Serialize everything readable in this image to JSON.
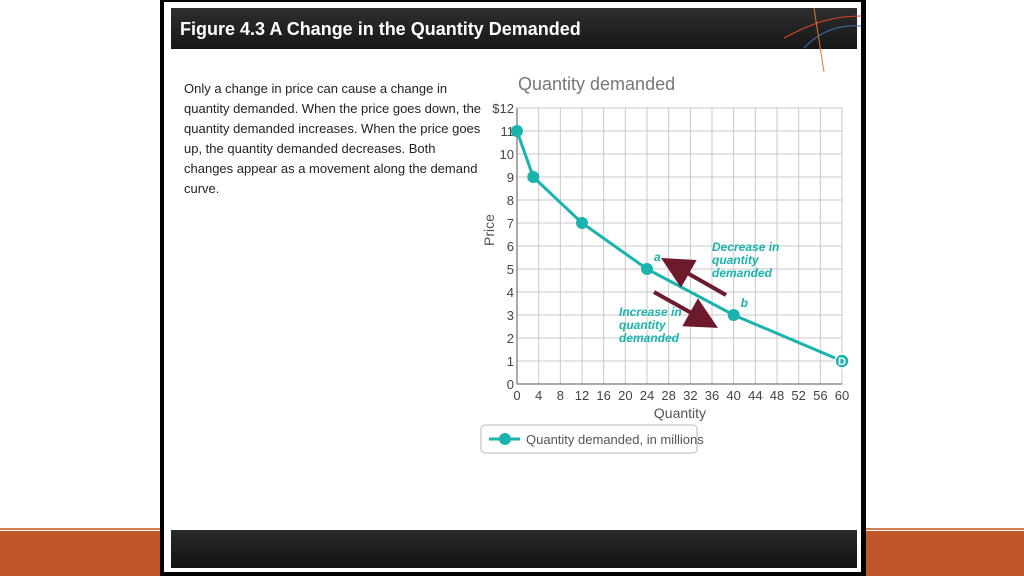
{
  "slide": {
    "title": "Figure 4.3 A Change in the Quantity Demanded",
    "description": "Only a change in price can cause a change in quantity demanded. When the price goes down, the quantity demanded increases. When the price goes up, the quantity demanded decreases. Both changes appear as a movement along the demand curve."
  },
  "chart_data": {
    "type": "line",
    "title": "Quantity demanded",
    "xlabel": "Quantity",
    "ylabel": "Price",
    "xlim": [
      0,
      60
    ],
    "ylim": [
      0,
      12
    ],
    "x_ticks": [
      0,
      4,
      8,
      12,
      16,
      20,
      24,
      28,
      32,
      36,
      40,
      44,
      48,
      52,
      56,
      60
    ],
    "y_tick_labels": [
      "0",
      "1",
      "2",
      "3",
      "4",
      "5",
      "6",
      "7",
      "8",
      "9",
      "10",
      "11",
      "$12"
    ],
    "grid": true,
    "series": [
      {
        "name": "Quantity demanded, in millions",
        "color": "#1bb3ad",
        "x": [
          0,
          3,
          12,
          24,
          40,
          60
        ],
        "y": [
          11,
          9,
          7,
          5,
          3,
          1
        ]
      }
    ],
    "point_labels": [
      {
        "x": 24,
        "y": 5,
        "text": "a"
      },
      {
        "x": 40,
        "y": 3,
        "text": "b"
      },
      {
        "x": 60,
        "y": 1,
        "text": "D"
      }
    ],
    "annotations": [
      {
        "lines": [
          "Decrease in",
          "quantity",
          "demanded"
        ],
        "direction": "up-left"
      },
      {
        "lines": [
          "Increase in",
          "quantity",
          "demanded"
        ],
        "direction": "down-right"
      }
    ],
    "arrow_color": "#6d1a2c",
    "legend_position": "bottom-left"
  }
}
